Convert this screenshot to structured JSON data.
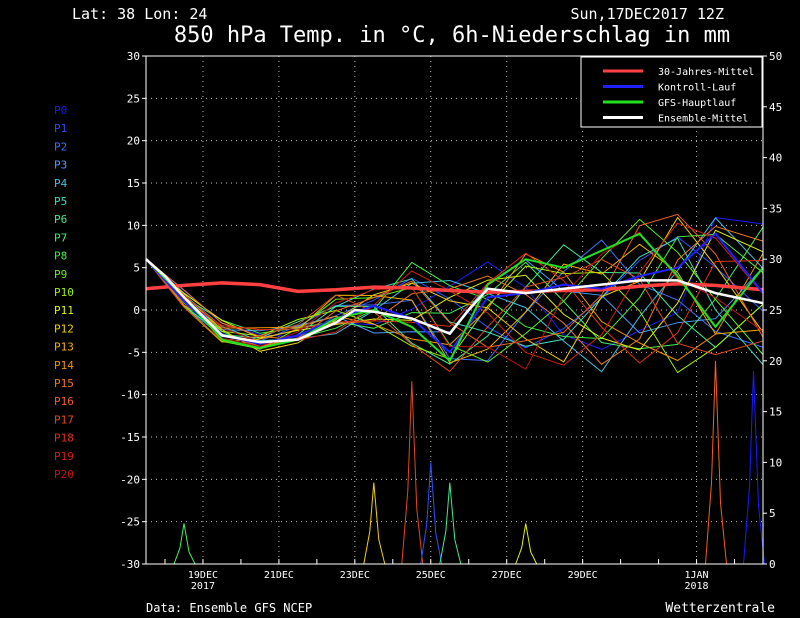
{
  "header": {
    "location": "Lat: 38 Lon: 24",
    "date": "Sun,17DEC2017 12Z",
    "title": "850 hPa Temp. in °C, 6h-Niederschlag in mm"
  },
  "footer": {
    "source": "Data: Ensemble GFS NCEP",
    "brand": "Wetterzentrale"
  },
  "members": [
    {
      "label": "P0",
      "color": "#1a1aff"
    },
    {
      "label": "P1",
      "color": "#2f4fff"
    },
    {
      "label": "P2",
      "color": "#3a70ff"
    },
    {
      "label": "P3",
      "color": "#4a9aff"
    },
    {
      "label": "P4",
      "color": "#40c0e0"
    },
    {
      "label": "P5",
      "color": "#40d8c0"
    },
    {
      "label": "P6",
      "color": "#40e890"
    },
    {
      "label": "P7",
      "color": "#40f060"
    },
    {
      "label": "P8",
      "color": "#40f040"
    },
    {
      "label": "P9",
      "color": "#60f020"
    },
    {
      "label": "P10",
      "color": "#a0f000"
    },
    {
      "label": "P11",
      "color": "#e0f000"
    },
    {
      "label": "P12",
      "color": "#f0d000"
    },
    {
      "label": "P13",
      "color": "#f0b000"
    },
    {
      "label": "P14",
      "color": "#f09000"
    },
    {
      "label": "P15",
      "color": "#f07820"
    },
    {
      "label": "P16",
      "color": "#f06020"
    },
    {
      "label": "P17",
      "color": "#e04820"
    },
    {
      "label": "P18",
      "color": "#e03018"
    },
    {
      "label": "P19",
      "color": "#d02010"
    },
    {
      "label": "P20",
      "color": "#c01010"
    }
  ],
  "legend": [
    {
      "label": "30-Jahres-Mittel",
      "color": "#ff4040"
    },
    {
      "label": "Kontroll-Lauf",
      "color": "#2020ff"
    },
    {
      "label": "GFS-Hauptlauf",
      "color": "#20e020"
    },
    {
      "label": "Ensemble-Mittel",
      "color": "#ffffff"
    }
  ],
  "chart_data": {
    "type": "line",
    "x_unit": "date",
    "x_range": [
      "2017-12-17T12:00",
      "2018-01-02T18:00"
    ],
    "ylim": [
      -30,
      30
    ],
    "yticks": [
      -30,
      -25,
      -20,
      -15,
      -10,
      -5,
      0,
      5,
      10,
      15,
      20,
      25,
      30
    ],
    "y2lim": [
      0,
      50
    ],
    "y2ticks": [
      0,
      5,
      10,
      15,
      20,
      25,
      30,
      35,
      40,
      45,
      50
    ],
    "grid": true,
    "legend_position": "top-right",
    "xticks": [
      {
        "date": "2017-12-19T00:00",
        "label": "19DEC",
        "label2": "2017"
      },
      {
        "date": "2017-12-21T00:00",
        "label": "21DEC",
        "label2": ""
      },
      {
        "date": "2017-12-23T00:00",
        "label": "23DEC",
        "label2": ""
      },
      {
        "date": "2017-12-25T00:00",
        "label": "25DEC",
        "label2": ""
      },
      {
        "date": "2017-12-27T00:00",
        "label": "27DEC",
        "label2": ""
      },
      {
        "date": "2017-12-29T00:00",
        "label": "29DEC",
        "label2": ""
      },
      {
        "date": "2018-01-01T00:00",
        "label": "1JAN",
        "label2": "2018"
      }
    ],
    "climatology": {
      "name": "30-Jahres-Mittel",
      "x": [
        "2017-12-17T12:00",
        "2017-12-18T12:00",
        "2017-12-19T12:00",
        "2017-12-20T12:00",
        "2017-12-21T12:00",
        "2017-12-22T12:00",
        "2017-12-23T12:00",
        "2017-12-24T12:00",
        "2017-12-25T12:00",
        "2017-12-26T12:00",
        "2017-12-27T12:00",
        "2017-12-28T12:00",
        "2017-12-29T12:00",
        "2017-12-30T12:00",
        "2017-12-31T12:00",
        "2018-01-01T12:00",
        "2018-01-02T18:00"
      ],
      "values": [
        2.5,
        2.9,
        3.2,
        3.0,
        2.2,
        2.4,
        2.7,
        2.6,
        2.3,
        2.1,
        2.2,
        2.3,
        2.4,
        2.8,
        3.1,
        2.9,
        2.4
      ]
    },
    "ensemble_mean": {
      "name": "Ensemble-Mittel",
      "x": [
        "2017-12-17T12:00",
        "2017-12-18T00:00",
        "2017-12-18T12:00",
        "2017-12-19T12:00",
        "2017-12-20T12:00",
        "2017-12-21T12:00",
        "2017-12-22T12:00",
        "2017-12-23T00:00",
        "2017-12-23T12:00",
        "2017-12-24T12:00",
        "2017-12-25T12:00",
        "2017-12-26T00:00",
        "2017-12-26T12:00",
        "2017-12-27T12:00",
        "2017-12-28T12:00",
        "2017-12-29T12:00",
        "2017-12-30T12:00",
        "2017-12-31T12:00",
        "2018-01-01T12:00",
        "2018-01-02T18:00"
      ],
      "values": [
        6,
        4,
        1.5,
        -3,
        -3.8,
        -3.5,
        -1.5,
        0,
        -0.2,
        -1,
        -2.8,
        0,
        2.5,
        2,
        2.5,
        3,
        3.5,
        3.5,
        2,
        0.8
      ]
    },
    "control_run": {
      "name": "Kontroll-Lauf",
      "x": [
        "2017-12-17T12:00",
        "2017-12-18T12:00",
        "2017-12-19T12:00",
        "2017-12-20T12:00",
        "2017-12-21T12:00",
        "2017-12-22T12:00",
        "2017-12-23T12:00",
        "2017-12-24T12:00",
        "2017-12-25T12:00",
        "2017-12-26T12:00",
        "2017-12-27T12:00",
        "2017-12-28T12:00",
        "2017-12-29T12:00",
        "2017-12-30T12:00",
        "2017-12-31T12:00",
        "2018-01-01T12:00",
        "2018-01-02T18:00"
      ],
      "values": [
        6,
        1,
        -3,
        -4,
        -3,
        -1,
        0.5,
        -1,
        -5,
        1.5,
        2,
        3,
        2.5,
        4,
        5,
        9,
        2
      ]
    },
    "main_run": {
      "name": "GFS-Hauptlauf",
      "x": [
        "2017-12-17T12:00",
        "2017-12-18T12:00",
        "2017-12-19T12:00",
        "2017-12-20T12:00",
        "2017-12-21T12:00",
        "2017-12-22T12:00",
        "2017-12-23T12:00",
        "2017-12-24T12:00",
        "2017-12-25T12:00",
        "2017-12-26T12:00",
        "2017-12-27T12:00",
        "2017-12-28T12:00",
        "2017-12-29T12:00",
        "2017-12-30T12:00",
        "2017-12-31T12:00",
        "2018-01-01T12:00",
        "2018-01-02T18:00"
      ],
      "values": [
        6,
        1.5,
        -3.5,
        -4.5,
        -3.5,
        -1,
        0,
        -2,
        -6,
        3,
        6,
        5,
        7,
        9,
        4,
        -2,
        5
      ]
    },
    "member_temperature_range": {
      "x": [
        "2017-12-17T12:00",
        "2017-12-18T12:00",
        "2017-12-19T12:00",
        "2017-12-20T12:00",
        "2017-12-21T12:00",
        "2017-12-22T12:00",
        "2017-12-23T12:00",
        "2017-12-24T12:00",
        "2017-12-25T12:00",
        "2017-12-26T12:00",
        "2017-12-27T12:00",
        "2017-12-28T12:00",
        "2017-12-29T12:00",
        "2017-12-30T12:00",
        "2017-12-31T12:00",
        "2018-01-01T12:00",
        "2018-01-02T18:00"
      ],
      "min": [
        6,
        0,
        -4,
        -5,
        -4,
        -3,
        -3,
        -6,
        -8,
        -7,
        -8,
        -8,
        -8,
        -8,
        -8,
        -8,
        -8
      ],
      "max": [
        6,
        2.5,
        -1,
        -2,
        -1,
        2,
        3,
        7,
        6,
        6,
        7,
        9,
        9,
        11,
        13,
        13,
        12
      ]
    },
    "precipitation_mm_peaks": [
      {
        "x": "2017-12-18T12:00",
        "value": 4
      },
      {
        "x": "2017-12-23T12:00",
        "value": 8
      },
      {
        "x": "2017-12-24T12:00",
        "value": 18
      },
      {
        "x": "2017-12-25T00:00",
        "value": 10
      },
      {
        "x": "2017-12-25T12:00",
        "value": 8
      },
      {
        "x": "2017-12-27T12:00",
        "value": 4
      },
      {
        "x": "2018-01-01T12:00",
        "value": 20
      },
      {
        "x": "2018-01-02T12:00",
        "value": 19
      }
    ]
  }
}
